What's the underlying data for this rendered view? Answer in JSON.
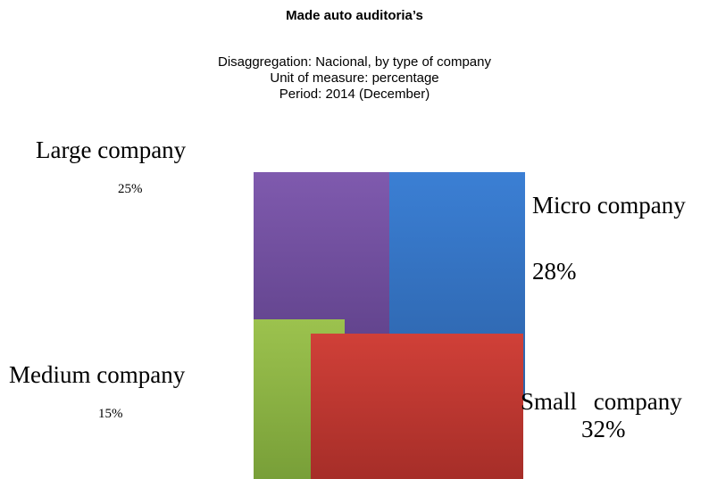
{
  "title": "Made auto auditoria’s",
  "subtitle": {
    "line1": "Disaggregation: Nacional, by type of company",
    "line2": "Unit of measure: percentage",
    "line3": "Period: 2014 (December)"
  },
  "chart_data": {
    "type": "area",
    "categories": [
      "Large company",
      "Micro company",
      "Medium company",
      "Small company"
    ],
    "values": [
      25,
      28,
      15,
      32
    ],
    "value_labels": [
      "25%",
      "28%",
      "15%",
      "32%"
    ],
    "colors": [
      "#6a4c9c",
      "#3572c2",
      "#8fb24a",
      "#c0382f"
    ],
    "legend": "none",
    "grid": false
  }
}
